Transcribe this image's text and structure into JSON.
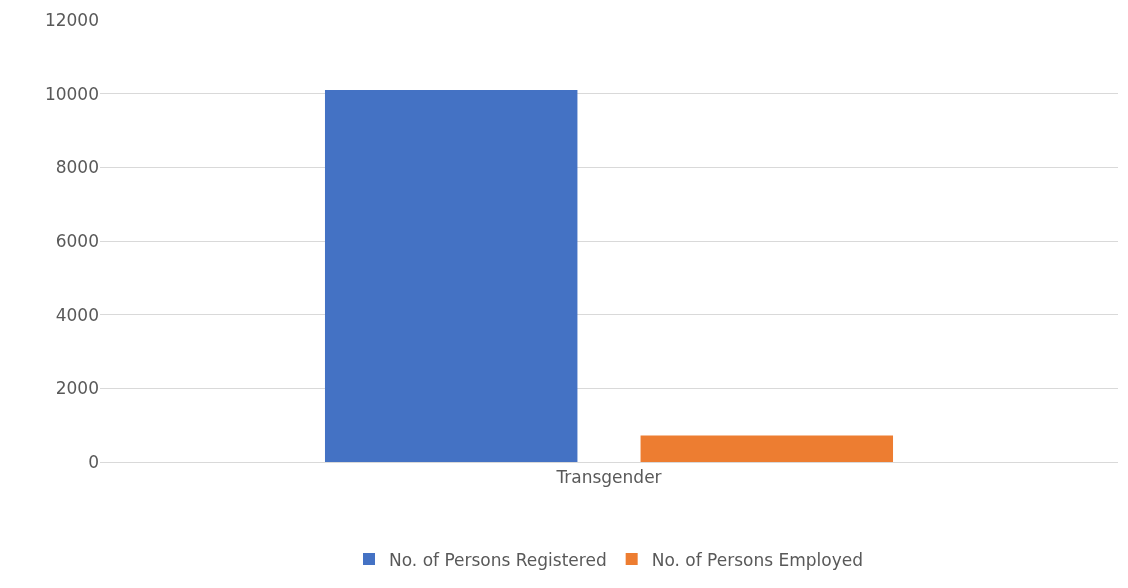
{
  "chart_data": {
    "type": "bar",
    "categories": [
      "Transgender"
    ],
    "series": [
      {
        "name": "No. of Persons Registered",
        "color": "#4472c4",
        "values": [
          10100
        ]
      },
      {
        "name": "No. of Persons Employed",
        "color": "#ed7d31",
        "values": [
          720
        ]
      }
    ],
    "ylim": [
      0,
      12000
    ],
    "yticks": [
      0,
      2000,
      4000,
      6000,
      8000,
      10000,
      12000
    ],
    "grid": "y",
    "legend": "bottom"
  }
}
